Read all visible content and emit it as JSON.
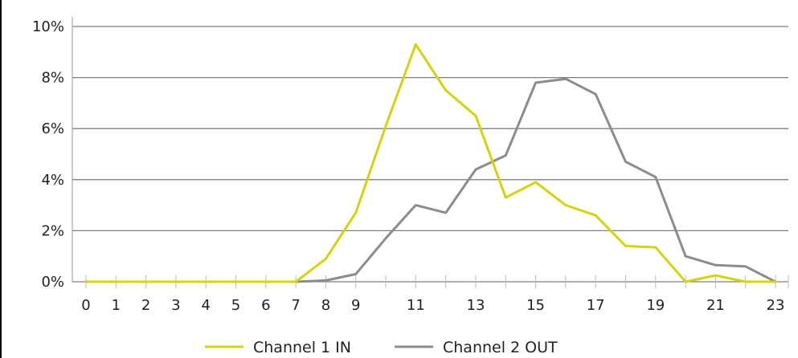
{
  "chart_data": {
    "type": "line",
    "x": [
      0,
      1,
      2,
      3,
      4,
      5,
      6,
      7,
      8,
      9,
      10,
      11,
      12,
      13,
      14,
      15,
      16,
      17,
      18,
      19,
      20,
      21,
      22,
      23
    ],
    "x_tick_labels": [
      "0",
      "1",
      "2",
      "3",
      "4",
      "5",
      "6",
      "7",
      "8",
      "9",
      "11",
      "13",
      "15",
      "17",
      "19",
      "21",
      "23"
    ],
    "x_tick_values": [
      0,
      1,
      2,
      3,
      4,
      5,
      6,
      7,
      8,
      9,
      11,
      13,
      15,
      17,
      19,
      21,
      23
    ],
    "xlim": [
      0,
      23
    ],
    "ylim": [
      0,
      10
    ],
    "y_ticks": [
      0,
      2,
      4,
      6,
      8,
      10
    ],
    "y_tick_labels": [
      "0%",
      "2%",
      "4%",
      "6%",
      "8%",
      "10%"
    ],
    "y_unit": "%",
    "grid": "horizontal",
    "legend_position": "bottom-center",
    "series": [
      {
        "name": "Channel 1 IN",
        "color": "#d4d40c",
        "values": [
          0,
          0,
          0,
          0,
          0,
          0,
          0,
          0,
          0.9,
          2.7,
          6.1,
          9.3,
          7.5,
          6.5,
          3.3,
          3.9,
          3.0,
          2.6,
          1.4,
          1.35,
          0,
          0.25,
          0,
          0
        ]
      },
      {
        "name": "Channel 2 OUT",
        "color": "#8c8c8c",
        "values": [
          0,
          0,
          0,
          0,
          0,
          0,
          0,
          0,
          0.05,
          0.3,
          1.7,
          3.0,
          2.7,
          4.4,
          4.95,
          7.8,
          7.95,
          7.35,
          4.7,
          4.1,
          1.0,
          0.65,
          0.6,
          0
        ]
      }
    ],
    "xlabel": "",
    "ylabel": "",
    "title": ""
  }
}
